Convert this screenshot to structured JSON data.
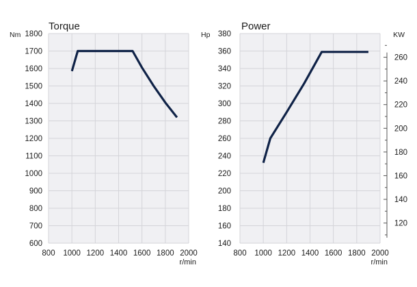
{
  "chart_data": [
    {
      "type": "line",
      "title": "Torque",
      "ylabel": "Nm",
      "xlabel": "r/min",
      "xlim": [
        800,
        2000
      ],
      "ylim": [
        600,
        1800
      ],
      "x_ticks": [
        800,
        1000,
        1200,
        1400,
        1600,
        1800,
        2000
      ],
      "y_ticks": [
        600,
        700,
        800,
        900,
        1000,
        1100,
        1200,
        1300,
        1400,
        1500,
        1600,
        1700,
        1800
      ],
      "grid": true,
      "series": [
        {
          "color": "#0f2247",
          "points": [
            [
              1000,
              1585
            ],
            [
              1050,
              1700
            ],
            [
              1100,
              1700
            ],
            [
              1300,
              1700
            ],
            [
              1520,
              1700
            ],
            [
              1600,
              1605
            ],
            [
              1700,
              1500
            ],
            [
              1800,
              1405
            ],
            [
              1900,
              1320
            ]
          ]
        }
      ]
    },
    {
      "type": "line",
      "title": "Power",
      "ylabel": "Hp",
      "y2label": "KW",
      "xlabel": "r/min",
      "xlim": [
        800,
        2000
      ],
      "ylim": [
        140,
        380
      ],
      "y2lim": [
        103,
        280
      ],
      "x_ticks": [
        800,
        1000,
        1200,
        1400,
        1600,
        1800,
        2000
      ],
      "y_ticks": [
        140,
        160,
        180,
        200,
        220,
        240,
        260,
        280,
        300,
        320,
        340,
        360,
        380
      ],
      "y2_ticks": [
        120,
        140,
        160,
        180,
        200,
        220,
        240,
        260
      ],
      "grid": true,
      "series": [
        {
          "color": "#0f2247",
          "points": [
            [
              1000,
              232
            ],
            [
              1060,
              260
            ],
            [
              1200,
              290
            ],
            [
              1350,
              323
            ],
            [
              1500,
              359
            ],
            [
              1900,
              359
            ]
          ]
        }
      ]
    }
  ]
}
